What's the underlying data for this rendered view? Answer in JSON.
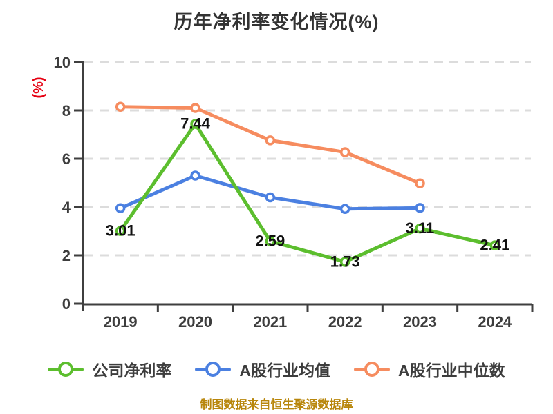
{
  "colors": {
    "company_series": "#5cbe2e",
    "industry_avg_series": "#4b80e1",
    "industry_median_series": "#f68c5f",
    "axis": "#3f3f3f",
    "grid": "#dcdcdc",
    "point_label": "#111111",
    "unit_label": "#e60012",
    "footer_text": "#b8860b",
    "title_text": "#333333"
  },
  "chart_data": {
    "type": "line",
    "title": "历年净利率变化情况(%)",
    "ylabel": "(%)",
    "categories": [
      "2019",
      "2020",
      "2021",
      "2022",
      "2023",
      "2024"
    ],
    "series": [
      {
        "name": "公司净利率",
        "color": "#5cbe2e",
        "show_point_labels": true,
        "values": [
          3.01,
          7.44,
          2.59,
          1.73,
          3.11,
          2.41
        ]
      },
      {
        "name": "A股行业均值",
        "color": "#4b80e1",
        "show_point_labels": false,
        "values": [
          3.95,
          5.3,
          4.4,
          3.92,
          3.96,
          null
        ]
      },
      {
        "name": "A股行业中位数",
        "color": "#f68c5f",
        "show_point_labels": false,
        "values": [
          8.15,
          8.1,
          6.76,
          6.27,
          4.98,
          null
        ]
      }
    ],
    "ylim": [
      0,
      10
    ],
    "yticks": [
      0,
      2,
      4,
      6,
      8,
      10
    ],
    "grid": "horizontal dashed",
    "legend_position": "bottom",
    "annotation": "制图数据来自恒生聚源数据库"
  }
}
